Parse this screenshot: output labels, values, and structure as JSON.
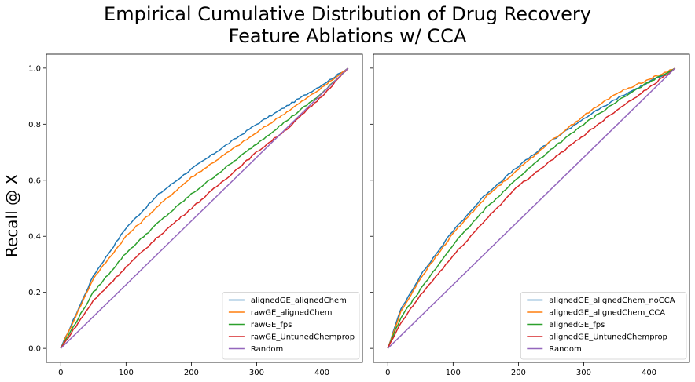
{
  "figure": {
    "title_line1": "Empirical Cumulative Distribution of Drug Recovery",
    "title_line2": "Feature Ablations w/ CCA",
    "ylabel": "Recall @ X"
  },
  "colors": {
    "blue": "#1f77b4",
    "orange": "#ff7f0e",
    "green": "#2ca02c",
    "red": "#d62728",
    "purple": "#9467bd"
  },
  "chart_data": [
    {
      "type": "line",
      "title": "",
      "xlabel": "",
      "ylabel": "Recall @ X",
      "xlim": [
        -22,
        462
      ],
      "ylim": [
        -0.05,
        1.05
      ],
      "xticks": [
        0,
        100,
        200,
        300,
        400
      ],
      "yticks": [
        0.0,
        0.2,
        0.4,
        0.6,
        0.8,
        1.0
      ],
      "legend_position": "lower right",
      "series": [
        {
          "name": "alignedGE_alignedChem",
          "color": "#1f77b4",
          "x": [
            0,
            50,
            100,
            150,
            200,
            250,
            300,
            350,
            400,
            440
          ],
          "y": [
            0,
            0.26,
            0.43,
            0.55,
            0.64,
            0.72,
            0.8,
            0.87,
            0.94,
            1.0
          ]
        },
        {
          "name": "rawGE_alignedChem",
          "color": "#ff7f0e",
          "x": [
            0,
            50,
            100,
            150,
            200,
            250,
            300,
            350,
            400,
            440
          ],
          "y": [
            0,
            0.25,
            0.4,
            0.51,
            0.61,
            0.69,
            0.77,
            0.85,
            0.93,
            1.0
          ]
        },
        {
          "name": "rawGE_fps",
          "color": "#2ca02c",
          "x": [
            0,
            50,
            100,
            150,
            200,
            250,
            300,
            350,
            400,
            440
          ],
          "y": [
            0,
            0.2,
            0.34,
            0.45,
            0.55,
            0.64,
            0.73,
            0.82,
            0.91,
            1.0
          ]
        },
        {
          "name": "rawGE_UntunedChemprop",
          "color": "#d62728",
          "x": [
            0,
            50,
            100,
            150,
            200,
            250,
            300,
            350,
            400,
            440
          ],
          "y": [
            0,
            0.17,
            0.29,
            0.4,
            0.5,
            0.6,
            0.7,
            0.79,
            0.9,
            1.0
          ]
        },
        {
          "name": "Random",
          "color": "#9467bd",
          "x": [
            0,
            440
          ],
          "y": [
            0,
            1.0
          ]
        }
      ]
    },
    {
      "type": "line",
      "title": "",
      "xlabel": "",
      "ylabel": "",
      "xlim": [
        -22,
        462
      ],
      "ylim": [
        -0.05,
        1.05
      ],
      "xticks": [
        0,
        100,
        200,
        300,
        400
      ],
      "yticks": [
        0.0,
        0.2,
        0.4,
        0.6,
        0.8,
        1.0
      ],
      "legend_position": "lower right",
      "series": [
        {
          "name": "alignedGE_alignedChem_noCCA",
          "color": "#1f77b4",
          "x": [
            0,
            20,
            50,
            100,
            150,
            200,
            250,
            300,
            350,
            400,
            440
          ],
          "y": [
            0,
            0.14,
            0.26,
            0.42,
            0.55,
            0.65,
            0.74,
            0.82,
            0.89,
            0.95,
            1.0
          ]
        },
        {
          "name": "alignedGE_alignedChem_CCA",
          "color": "#ff7f0e",
          "x": [
            0,
            20,
            50,
            100,
            150,
            200,
            250,
            300,
            350,
            400,
            440
          ],
          "y": [
            0,
            0.13,
            0.25,
            0.41,
            0.54,
            0.64,
            0.74,
            0.83,
            0.91,
            0.96,
            1.0
          ]
        },
        {
          "name": "alignedGE_fps",
          "color": "#2ca02c",
          "x": [
            0,
            20,
            50,
            100,
            150,
            200,
            250,
            300,
            350,
            400,
            440
          ],
          "y": [
            0,
            0.11,
            0.21,
            0.37,
            0.5,
            0.61,
            0.71,
            0.8,
            0.88,
            0.95,
            1.0
          ]
        },
        {
          "name": "alignedGE_UntunedChemprop",
          "color": "#d62728",
          "x": [
            0,
            20,
            50,
            100,
            150,
            200,
            250,
            300,
            350,
            400,
            440
          ],
          "y": [
            0,
            0.09,
            0.19,
            0.33,
            0.46,
            0.58,
            0.67,
            0.76,
            0.85,
            0.93,
            1.0
          ]
        },
        {
          "name": "Random",
          "color": "#9467bd",
          "x": [
            0,
            440
          ],
          "y": [
            0,
            1.0
          ]
        }
      ]
    }
  ]
}
